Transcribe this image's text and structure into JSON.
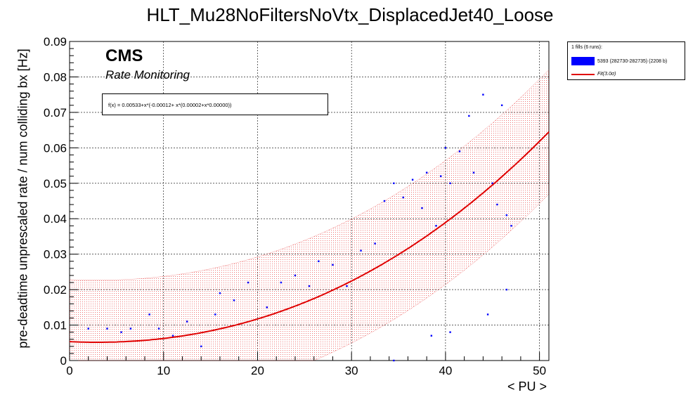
{
  "chart_data": {
    "type": "scatter",
    "title": "HLT_Mu28NoFiltersNoVtx_DisplacedJet40_Loose",
    "xlabel": "< PU >",
    "ylabel": "pre-deadtime unprescaled rate / num colliding bx [Hz]",
    "xlim": [
      0,
      51
    ],
    "ylim": [
      0,
      0.09
    ],
    "xticks": [
      0,
      10,
      20,
      30,
      40,
      50
    ],
    "yticks": [
      0,
      0.01,
      0.02,
      0.03,
      0.04,
      0.05,
      0.06,
      0.07,
      0.08,
      0.09
    ],
    "xtick_labels": [
      "0",
      "10",
      "20",
      "30",
      "40",
      "50"
    ],
    "ytick_labels": [
      "0",
      "0.01",
      "0.02",
      "0.03",
      "0.04",
      "0.05",
      "0.06",
      "0.07",
      "0.08",
      "0.09"
    ],
    "grid": true,
    "legend_position": "right, outside plot",
    "annotations": {
      "experiment": "CMS",
      "subtitle": "Rate Monitoring",
      "fit_formula": "f(x) = 0.00533+x*(-0.00012+ x*(0.00002+x*0.00000))"
    },
    "legend": {
      "header": "1 fills (6 runs):",
      "entries": [
        "5393 (282730-282735) (2208 b)",
        "Fit(3.0σ)"
      ]
    },
    "fit": {
      "name": "Fit(3.0σ)",
      "coefficients": [
        0.00533,
        -0.00012,
        2e-05,
        1e-07
      ],
      "band_sigma": 3.0,
      "band_halfwidth": 0.0175,
      "color": "#e00000"
    },
    "series": [
      {
        "name": "5393 (282730-282735) (2208 b)",
        "color": "#0000ff",
        "points": [
          [
            2,
            0.009
          ],
          [
            4,
            0.009
          ],
          [
            5.5,
            0.008
          ],
          [
            6.5,
            0.009
          ],
          [
            8.5,
            0.013
          ],
          [
            9.5,
            0.009
          ],
          [
            11,
            0.007
          ],
          [
            12.5,
            0.011
          ],
          [
            14,
            0.004
          ],
          [
            15.5,
            0.013
          ],
          [
            16,
            0.019
          ],
          [
            17.5,
            0.017
          ],
          [
            19,
            0.022
          ],
          [
            21,
            0.015
          ],
          [
            22.5,
            0.022
          ],
          [
            24,
            0.024
          ],
          [
            25.5,
            0.021
          ],
          [
            26.5,
            0.028
          ],
          [
            28,
            0.027
          ],
          [
            29.5,
            0.021
          ],
          [
            31,
            0.031
          ],
          [
            32.5,
            0.033
          ],
          [
            33.5,
            0.045
          ],
          [
            34.5,
            0.05
          ],
          [
            35.5,
            0.046
          ],
          [
            36.5,
            0.051
          ],
          [
            37.5,
            0.043
          ],
          [
            38,
            0.053
          ],
          [
            39,
            0.038
          ],
          [
            39.5,
            0.052
          ],
          [
            40,
            0.06
          ],
          [
            40.5,
            0.05
          ],
          [
            41.5,
            0.059
          ],
          [
            42.5,
            0.069
          ],
          [
            43,
            0.053
          ],
          [
            44,
            0.075
          ],
          [
            45,
            0.05
          ],
          [
            45.5,
            0.044
          ],
          [
            46,
            0.072
          ],
          [
            46.5,
            0.041
          ],
          [
            47,
            0.038
          ],
          [
            38.5,
            0.007
          ],
          [
            40.5,
            0.008
          ],
          [
            44.5,
            0.013
          ],
          [
            46.5,
            0.02
          ],
          [
            34.5,
            0.0
          ]
        ]
      }
    ]
  }
}
